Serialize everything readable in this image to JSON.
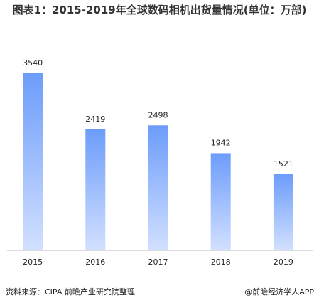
{
  "chart_data": {
    "type": "bar",
    "title": "图表1：2015-2019年全球数码相机出货量情况(单位：万部)",
    "categories": [
      "2015",
      "2016",
      "2017",
      "2018",
      "2019"
    ],
    "values": [
      3540,
      2419,
      2498,
      1942,
      1521
    ],
    "color": "#79a5fb",
    "source": "资料来源：CIPA 前瞻产业研究院整理",
    "credit": "@前瞻经济学人APP"
  }
}
